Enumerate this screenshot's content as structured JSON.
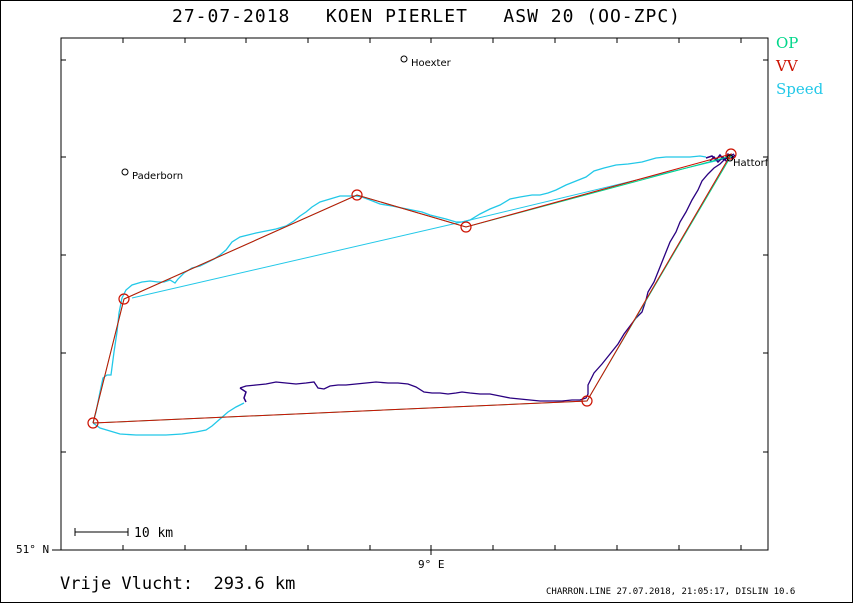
{
  "title": "27-07-2018   KOEN PIERLET   ASW 20 (OO-ZPC)",
  "legend": {
    "op": {
      "label": "OP",
      "color": "#00d68a"
    },
    "vv": {
      "label": "VV",
      "color": "#cc1100"
    },
    "speed": {
      "label": "Speed",
      "color": "#22c8e8"
    }
  },
  "axes": {
    "lat_label": "51° N",
    "lon_label": "9° E"
  },
  "towns": {
    "hoexter": "Hoexter",
    "paderborn": "Paderborn",
    "hattorf": "Hattorf"
  },
  "scale_label": "10 km",
  "footer": {
    "distance": "Vrije Vlucht:  293.6 km",
    "info": "CHARRON.LINE 27.07.2018, 21:05:17, DISLIN 10.6"
  },
  "colors": {
    "track_dark": "#2a0080",
    "frame": "#000000",
    "turnpoint": "#cc1100"
  }
}
